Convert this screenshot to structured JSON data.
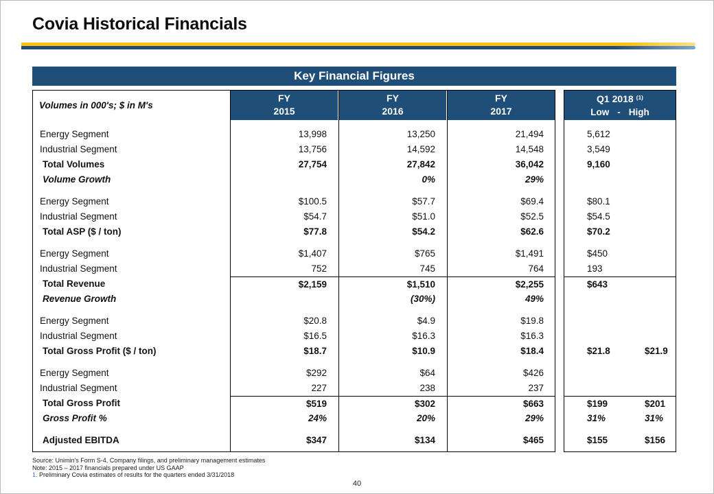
{
  "slide": {
    "title": "Covia Historical Financials",
    "page_number": "40"
  },
  "colors": {
    "header_blue": "#1f4e79",
    "gold": "#ffc20e"
  },
  "table": {
    "title": "Key Financial Figures",
    "label_header": "Volumes in 000's; $ in M's",
    "columns": [
      {
        "line1": "FY",
        "line2": "2015"
      },
      {
        "line1": "FY",
        "line2": "2016"
      },
      {
        "line1": "FY",
        "line2": "2017"
      }
    ],
    "q1_header": {
      "title": "Q1 2018",
      "superscript": "(1)",
      "low_label": "Low",
      "separator": "-",
      "high_label": "High"
    },
    "rows": [
      {
        "label": "Energy Segment",
        "style": "normal",
        "gap_before": true,
        "topline": false,
        "values": [
          "13,998",
          "13,250",
          "21,494"
        ],
        "q1_low": "5,612",
        "q1_high": ""
      },
      {
        "label": "Industrial Segment",
        "style": "normal",
        "gap_before": false,
        "topline": false,
        "values": [
          "13,756",
          "14,592",
          "14,548"
        ],
        "q1_low": "3,549",
        "q1_high": ""
      },
      {
        "label": "Total Volumes",
        "style": "total",
        "gap_before": false,
        "topline": false,
        "values": [
          "27,754",
          "27,842",
          "36,042"
        ],
        "q1_low": "9,160",
        "q1_high": ""
      },
      {
        "label": "Volume Growth",
        "style": "growth",
        "gap_before": false,
        "topline": false,
        "values": [
          "",
          "0%",
          "29%"
        ],
        "q1_low": "",
        "q1_high": ""
      },
      {
        "label": "Energy Segment",
        "style": "normal",
        "gap_before": true,
        "topline": false,
        "values": [
          "$100.5",
          "$57.7",
          "$69.4"
        ],
        "q1_low": "$80.1",
        "q1_high": ""
      },
      {
        "label": "Industrial Segment",
        "style": "normal",
        "gap_before": false,
        "topline": false,
        "values": [
          "$54.7",
          "$51.0",
          "$52.5"
        ],
        "q1_low": "$54.5",
        "q1_high": ""
      },
      {
        "label": "Total ASP ($ / ton)",
        "style": "total",
        "gap_before": false,
        "topline": false,
        "values": [
          "$77.8",
          "$54.2",
          "$62.6"
        ],
        "q1_low": "$70.2",
        "q1_high": ""
      },
      {
        "label": "Energy Segment",
        "style": "normal",
        "gap_before": true,
        "topline": false,
        "values": [
          "$1,407",
          "$765",
          "$1,491"
        ],
        "q1_low": "$450",
        "q1_high": ""
      },
      {
        "label": "Industrial Segment",
        "style": "normal",
        "gap_before": false,
        "topline": false,
        "values": [
          "752",
          "745",
          "764"
        ],
        "q1_low": "193",
        "q1_high": ""
      },
      {
        "label": "Total Revenue",
        "style": "total",
        "gap_before": false,
        "topline": true,
        "values": [
          "$2,159",
          "$1,510",
          "$2,255"
        ],
        "q1_low": "$643",
        "q1_high": ""
      },
      {
        "label": "Revenue Growth",
        "style": "growth",
        "gap_before": false,
        "topline": false,
        "values": [
          "",
          "(30%)",
          "49%"
        ],
        "q1_low": "",
        "q1_high": ""
      },
      {
        "label": "Energy Segment",
        "style": "normal",
        "gap_before": true,
        "topline": false,
        "values": [
          "$20.8",
          "$4.9",
          "$19.8"
        ],
        "q1_low": "",
        "q1_high": ""
      },
      {
        "label": "Industrial Segment",
        "style": "normal",
        "gap_before": false,
        "topline": false,
        "values": [
          "$16.5",
          "$16.3",
          "$16.3"
        ],
        "q1_low": "",
        "q1_high": ""
      },
      {
        "label": "Total Gross Profit ($ / ton)",
        "style": "total",
        "gap_before": false,
        "topline": false,
        "values": [
          "$18.7",
          "$10.9",
          "$18.4"
        ],
        "q1_low": "$21.8",
        "q1_high": "$21.9"
      },
      {
        "label": "Energy Segment",
        "style": "normal",
        "gap_before": true,
        "topline": false,
        "values": [
          "$292",
          "$64",
          "$426"
        ],
        "q1_low": "",
        "q1_high": ""
      },
      {
        "label": "Industrial Segment",
        "style": "normal",
        "gap_before": false,
        "topline": false,
        "values": [
          "227",
          "238",
          "237"
        ],
        "q1_low": "",
        "q1_high": ""
      },
      {
        "label": "Total Gross Profit",
        "style": "total",
        "gap_before": false,
        "topline": true,
        "values": [
          "$519",
          "$302",
          "$663"
        ],
        "q1_low": "$199",
        "q1_high": "$201"
      },
      {
        "label": "Gross Profit %",
        "style": "growth",
        "gap_before": false,
        "topline": false,
        "values": [
          "24%",
          "20%",
          "29%"
        ],
        "q1_low": "31%",
        "q1_high": "31%"
      },
      {
        "label": "Adjusted EBITDA",
        "style": "total",
        "gap_before": true,
        "topline": false,
        "values": [
          "$347",
          "$134",
          "$465"
        ],
        "q1_low": "$155",
        "q1_high": "$156"
      }
    ]
  },
  "footer": {
    "source": "Source:  Unimin's Form S-4, Company filings, and preliminary management estimates",
    "note": "Note:  2015 – 2017 financials prepared under US GAAP",
    "footnote_number": "1.",
    "footnote_text": "  Preliminary Covia estimates of results for the quarters ended 3/31/2018"
  }
}
